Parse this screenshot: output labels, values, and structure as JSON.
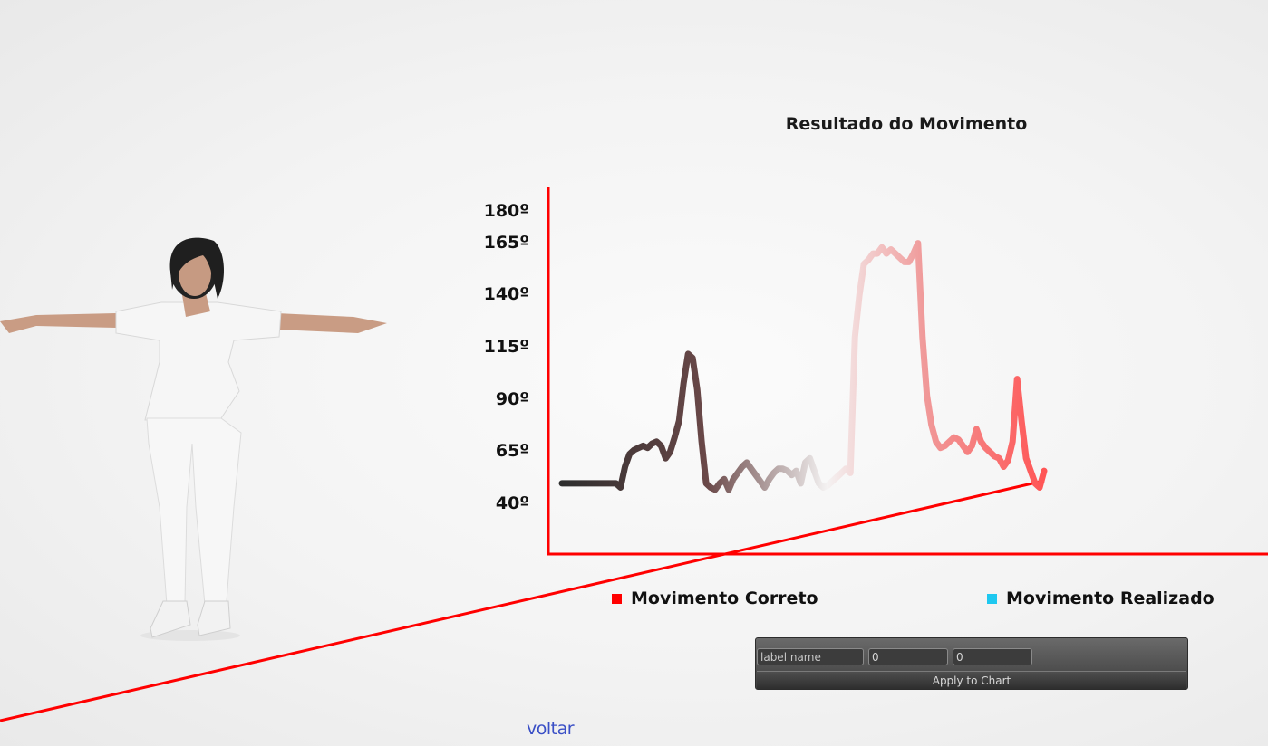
{
  "chart_data": {
    "type": "line",
    "title": "Resultado do Movimento",
    "y_tick_labels": [
      "180º",
      "165º",
      "140º",
      "115º",
      "90º",
      "65º",
      "40º"
    ],
    "y_ticks": [
      180,
      165,
      140,
      115,
      90,
      65,
      40
    ],
    "ylim": [
      30,
      183
    ],
    "legend": [
      {
        "label": "Movimento Correto",
        "color": "#ff0000"
      },
      {
        "label": "Movimento Realizado",
        "color": "#1ec8f0"
      }
    ],
    "axis_color": "#ff0000",
    "series": [
      {
        "name": "Movimento Correto",
        "x": [
          0,
          1,
          2,
          3,
          4,
          5,
          6,
          7,
          8,
          9,
          10,
          11,
          12,
          13,
          14,
          15,
          16,
          17,
          18,
          19,
          20,
          21,
          22,
          23,
          24,
          25,
          26,
          27,
          28,
          29,
          30,
          31,
          32,
          33,
          34,
          35,
          36,
          37,
          38,
          39,
          40,
          41,
          42,
          43,
          44,
          45,
          46,
          47,
          48,
          49,
          50,
          51,
          52,
          53,
          54,
          55,
          56,
          57,
          58,
          59,
          60,
          61,
          62,
          63,
          64,
          65,
          66,
          67,
          68,
          69,
          70,
          71,
          72,
          73,
          74,
          75,
          76,
          77,
          78,
          79,
          80,
          81,
          82,
          83,
          84,
          85,
          86,
          87,
          88,
          89,
          90,
          91,
          92,
          93,
          94,
          95,
          96,
          97,
          98,
          99,
          100,
          101,
          102,
          103,
          104,
          105,
          106,
          107
        ],
        "y": [
          50,
          50,
          50,
          50,
          50,
          50,
          50,
          50,
          50,
          50,
          50,
          50,
          50,
          48,
          58,
          64,
          66,
          67,
          68,
          67,
          69,
          70,
          68,
          62,
          65,
          72,
          80,
          98,
          112,
          110,
          95,
          70,
          50,
          48,
          47,
          50,
          52,
          47,
          52,
          55,
          58,
          60,
          57,
          54,
          51,
          48,
          52,
          55,
          57,
          57,
          56,
          54,
          56,
          50,
          60,
          62,
          56,
          50,
          48,
          49,
          51,
          53,
          55,
          57,
          55,
          120,
          140,
          155,
          157,
          160,
          160,
          163,
          160,
          162,
          160,
          158,
          156,
          156,
          160,
          165,
          120,
          92,
          78,
          70,
          67,
          68,
          70,
          72,
          71,
          68,
          65,
          68,
          76,
          70,
          67,
          65,
          63,
          62,
          58,
          61,
          70,
          100,
          80,
          62,
          56,
          50,
          48,
          56
        ]
      }
    ]
  },
  "panel": {
    "label_placeholder": "label name",
    "value1": "0",
    "value2": "0",
    "apply_label": "Apply to Chart"
  },
  "back_label": "voltar"
}
